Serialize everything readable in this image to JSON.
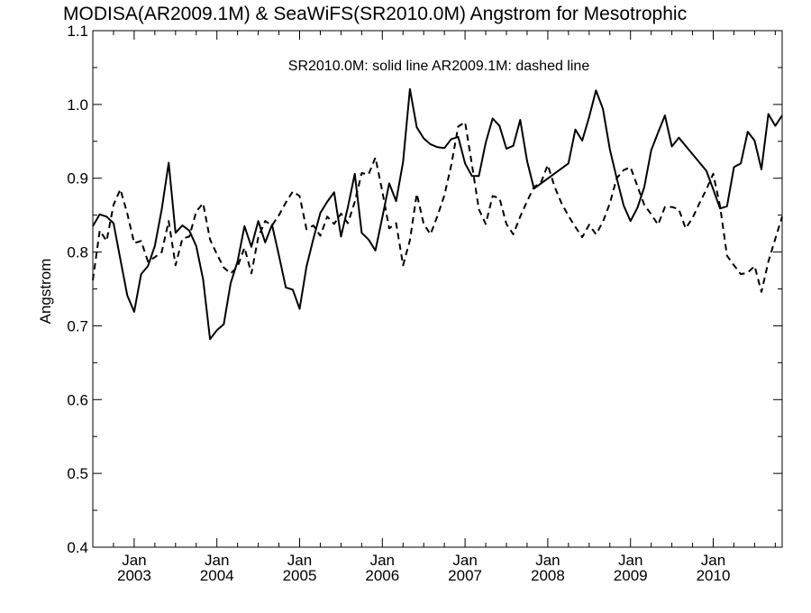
{
  "chart_data": {
    "type": "line",
    "title": "MODISA(AR2009.1M) & SeaWiFS(SR2010.0M)  Angstrom for Mesotrophic",
    "annotation": "SR2010.0M: solid line   AR2009.1M: dashed line",
    "xlabel": "",
    "ylabel": "Angstrom",
    "ylim": [
      0.4,
      1.1
    ],
    "xlim": [
      "2002-07-01",
      "2010-11-01"
    ],
    "yticks": [
      "0.4",
      "0.5",
      "0.6",
      "0.7",
      "0.8",
      "0.9",
      "1.0",
      "1.1"
    ],
    "xticks": [
      {
        "month": "Jan",
        "year": "2003",
        "date": "2003-01-01"
      },
      {
        "month": "Jan",
        "year": "2004",
        "date": "2004-01-01"
      },
      {
        "month": "Jan",
        "year": "2005",
        "date": "2005-01-01"
      },
      {
        "month": "Jan",
        "year": "2006",
        "date": "2006-01-01"
      },
      {
        "month": "Jan",
        "year": "2007",
        "date": "2007-01-01"
      },
      {
        "month": "Jan",
        "year": "2008",
        "date": "2008-01-01"
      },
      {
        "month": "Jan",
        "year": "2009",
        "date": "2009-01-01"
      },
      {
        "month": "Jan",
        "year": "2010",
        "date": "2010-01-01"
      }
    ],
    "grid": false,
    "series": [
      {
        "name": "SR2010.0M",
        "style": "solid",
        "color": "#000000",
        "x": [
          "2002-07",
          "2002-08",
          "2002-09",
          "2002-10",
          "2002-11",
          "2002-12",
          "2003-01",
          "2003-02",
          "2003-03",
          "2003-04",
          "2003-05",
          "2003-06",
          "2003-07",
          "2003-08",
          "2003-09",
          "2003-10",
          "2003-11",
          "2003-12",
          "2004-01",
          "2004-02",
          "2004-03",
          "2004-04",
          "2004-05",
          "2004-06",
          "2004-07",
          "2004-08",
          "2004-09",
          "2004-10",
          "2004-11",
          "2004-12",
          "2005-01",
          "2005-02",
          "2005-03",
          "2005-04",
          "2005-05",
          "2005-06",
          "2005-07",
          "2005-08",
          "2005-09",
          "2005-10",
          "2005-11",
          "2005-12",
          "2006-01",
          "2006-02",
          "2006-03",
          "2006-04",
          "2006-05",
          "2006-06",
          "2006-07",
          "2006-08",
          "2006-09",
          "2006-10",
          "2006-11",
          "2006-12",
          "2007-01",
          "2007-02",
          "2007-03",
          "2007-04",
          "2007-05",
          "2007-06",
          "2007-07",
          "2007-08",
          "2007-09",
          "2007-10",
          "2007-11",
          "2008-04",
          "2008-05",
          "2008-06",
          "2008-07",
          "2008-08",
          "2008-09",
          "2008-10",
          "2008-11",
          "2008-12",
          "2009-01",
          "2009-02",
          "2009-03",
          "2009-04",
          "2009-05",
          "2009-06",
          "2009-07",
          "2009-08",
          "2009-12",
          "2010-01",
          "2010-02",
          "2010-03",
          "2010-04",
          "2010-05",
          "2010-06",
          "2010-07",
          "2010-08",
          "2010-09",
          "2010-10",
          "2010-11"
        ],
        "values": [
          0.835,
          0.851,
          0.848,
          0.839,
          0.79,
          0.741,
          0.719,
          0.77,
          0.781,
          0.808,
          0.858,
          0.921,
          0.826,
          0.836,
          0.829,
          0.808,
          0.763,
          0.682,
          0.694,
          0.702,
          0.758,
          0.787,
          0.835,
          0.807,
          0.842,
          0.813,
          0.837,
          0.795,
          0.752,
          0.749,
          0.723,
          0.78,
          0.818,
          0.853,
          0.868,
          0.881,
          0.821,
          0.861,
          0.906,
          0.826,
          0.817,
          0.802,
          0.847,
          0.893,
          0.869,
          0.922,
          1.021,
          0.969,
          0.954,
          0.946,
          0.942,
          0.941,
          0.953,
          0.956,
          0.92,
          0.903,
          0.903,
          0.948,
          0.981,
          0.971,
          0.94,
          0.944,
          0.979,
          0.923,
          0.886,
          0.92,
          0.966,
          0.951,
          0.983,
          1.019,
          0.994,
          0.939,
          0.9,
          0.863,
          0.842,
          0.86,
          0.888,
          0.938,
          0.962,
          0.985,
          0.943,
          0.955,
          0.91,
          0.885,
          0.859,
          0.862,
          0.915,
          0.92,
          0.963,
          0.951,
          0.912,
          0.987,
          0.971,
          0.985
        ]
      },
      {
        "name": "AR2009.1M",
        "style": "dashed",
        "color": "#000000",
        "x": [
          "2002-07",
          "2002-08",
          "2002-09",
          "2002-10",
          "2002-11",
          "2002-12",
          "2003-01",
          "2003-02",
          "2003-03",
          "2003-04",
          "2003-05",
          "2003-06",
          "2003-07",
          "2003-08",
          "2003-09",
          "2003-10",
          "2003-11",
          "2003-12",
          "2004-01",
          "2004-02",
          "2004-03",
          "2004-04",
          "2004-05",
          "2004-06",
          "2004-07",
          "2004-08",
          "2004-09",
          "2004-10",
          "2004-11",
          "2004-12",
          "2005-01",
          "2005-02",
          "2005-03",
          "2005-04",
          "2005-05",
          "2005-06",
          "2005-07",
          "2005-08",
          "2005-09",
          "2005-10",
          "2005-11",
          "2005-12",
          "2006-01",
          "2006-02",
          "2006-03",
          "2006-04",
          "2006-05",
          "2006-06",
          "2006-07",
          "2006-08",
          "2006-09",
          "2006-10",
          "2006-11",
          "2006-12",
          "2007-01",
          "2007-02",
          "2007-03",
          "2007-04",
          "2007-05",
          "2007-06",
          "2007-07",
          "2007-08",
          "2007-09",
          "2007-10",
          "2007-11",
          "2007-12",
          "2008-01",
          "2008-02",
          "2008-03",
          "2008-04",
          "2008-05",
          "2008-06",
          "2008-07",
          "2008-08",
          "2008-09",
          "2008-10",
          "2008-11",
          "2008-12",
          "2009-01",
          "2009-02",
          "2009-03",
          "2009-04",
          "2009-05",
          "2009-06",
          "2009-07",
          "2009-08",
          "2009-09",
          "2009-10",
          "2009-11",
          "2009-12",
          "2010-01",
          "2010-02",
          "2010-03",
          "2010-04",
          "2010-05",
          "2010-06",
          "2010-07",
          "2010-08",
          "2010-09",
          "2010-10",
          "2010-11"
        ],
        "values": [
          0.762,
          0.829,
          0.815,
          0.864,
          0.885,
          0.852,
          0.812,
          0.815,
          0.787,
          0.793,
          0.8,
          0.842,
          0.782,
          0.818,
          0.821,
          0.855,
          0.866,
          0.817,
          0.797,
          0.779,
          0.771,
          0.78,
          0.806,
          0.771,
          0.82,
          0.842,
          0.836,
          0.85,
          0.867,
          0.882,
          0.876,
          0.831,
          0.836,
          0.822,
          0.848,
          0.838,
          0.852,
          0.839,
          0.868,
          0.907,
          0.905,
          0.928,
          0.882,
          0.832,
          0.839,
          0.782,
          0.816,
          0.879,
          0.838,
          0.824,
          0.849,
          0.877,
          0.918,
          0.97,
          0.976,
          0.918,
          0.858,
          0.838,
          0.876,
          0.873,
          0.838,
          0.824,
          0.848,
          0.869,
          0.888,
          0.894,
          0.918,
          0.888,
          0.866,
          0.849,
          0.834,
          0.82,
          0.837,
          0.824,
          0.841,
          0.866,
          0.9,
          0.911,
          0.915,
          0.889,
          0.864,
          0.851,
          0.837,
          0.861,
          0.861,
          0.858,
          0.832,
          0.846,
          0.866,
          0.885,
          0.906,
          0.862,
          0.795,
          0.782,
          0.77,
          0.772,
          0.781,
          0.746,
          0.787,
          0.818,
          0.848
        ]
      }
    ]
  }
}
